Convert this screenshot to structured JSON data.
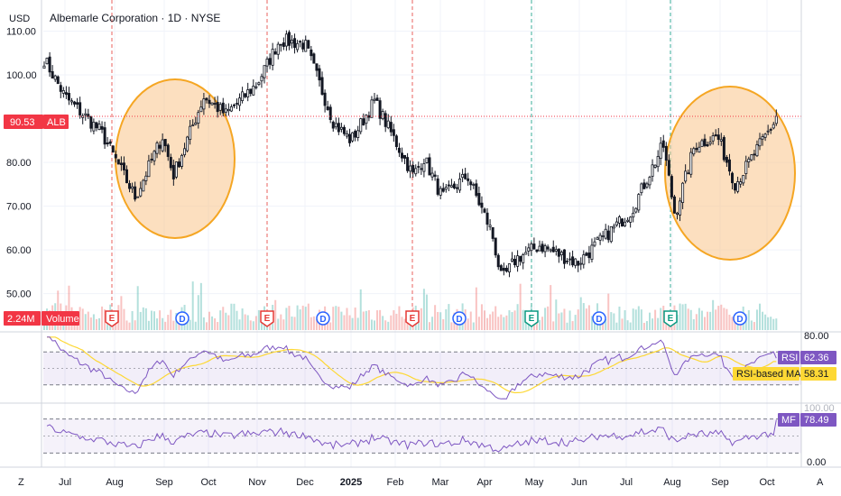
{
  "currency_label": "USD",
  "header": {
    "title": "Albemarle Corporation · 1D · NYSE"
  },
  "price_scale": {
    "ticks": [
      {
        "value": 110,
        "label": "110.00"
      },
      {
        "value": 100,
        "label": "100.00"
      },
      {
        "value": 90,
        "label": "90.00"
      },
      {
        "value": 80,
        "label": "80.00"
      },
      {
        "value": 70,
        "label": "70.00"
      },
      {
        "value": 60,
        "label": "60.00"
      },
      {
        "value": 50,
        "label": "50.00"
      }
    ],
    "last_price": {
      "value": 90.53,
      "label": "90.53",
      "symbol": "ALB"
    }
  },
  "volume_badge": {
    "value": "2.24M",
    "label": "Volume"
  },
  "time_axis": {
    "labels": [
      "Jul",
      "Aug",
      "Sep",
      "Oct",
      "Nov",
      "Dec",
      "2025",
      "Feb",
      "Mar",
      "Apr",
      "May",
      "Jun",
      "Jul",
      "Aug",
      "Sep",
      "Oct"
    ],
    "bold": [
      "2025"
    ],
    "left_button": "Z",
    "right_button": "A"
  },
  "event_markers": [
    {
      "text": "E",
      "kind": "earnings-red",
      "x_label": "Aug"
    },
    {
      "text": "D",
      "kind": "dividend",
      "x_label": "Sep"
    },
    {
      "text": "E",
      "kind": "earnings-red",
      "x_label": "Nov"
    },
    {
      "text": "D",
      "kind": "dividend",
      "x_label": "Dec"
    },
    {
      "text": "E",
      "kind": "earnings-red",
      "x_label": "Feb"
    },
    {
      "text": "D",
      "kind": "dividend",
      "x_label": "Mar"
    },
    {
      "text": "E",
      "kind": "earnings-green",
      "x_label": "May"
    },
    {
      "text": "D",
      "kind": "dividend",
      "x_label": "Jun"
    },
    {
      "text": "E",
      "kind": "earnings-green",
      "x_label": "Aug"
    },
    {
      "text": "D",
      "kind": "dividend",
      "x_label": "Sep"
    }
  ],
  "rsi_pane": {
    "scale_top": "80.00",
    "rsi": {
      "label": "RSI",
      "value": "62.36"
    },
    "ma": {
      "label": "RSI-based MA",
      "value": "58.31"
    }
  },
  "mf_pane": {
    "scale_top": "100.00",
    "scale_bottom": "0.00",
    "mf": {
      "label": "MF",
      "value": "78.49"
    }
  },
  "colors": {
    "up": "#26a69a",
    "down": "#ef5350",
    "candle": "#131722",
    "circle_fill": "#f9c48a",
    "circle_stroke": "#f5a623",
    "rsi_line": "#7e57c2",
    "rsi_ma": "#fdd835",
    "earnings_red": "#e53935",
    "earnings_green": "#089981",
    "dividend": "#2962ff",
    "price_badge": "#f23645"
  },
  "chart_data": {
    "type": "candlestick",
    "symbol": "ALB",
    "title": "Albemarle Corporation · 1D · NYSE",
    "currency": "USD",
    "ylim": [
      46,
      113
    ],
    "last_price": 90.53,
    "grid": true,
    "anchors": [
      {
        "month": "Jun",
        "close": 104
      },
      {
        "month": "Jul",
        "close": 95
      },
      {
        "month": "Aug",
        "close": 87
      },
      {
        "month": "Aug",
        "close": 72
      },
      {
        "month": "Sep",
        "close": 86
      },
      {
        "month": "Sep",
        "close": 77
      },
      {
        "month": "Oct",
        "close": 95
      },
      {
        "month": "Oct",
        "close": 91
      },
      {
        "month": "Nov",
        "close": 98
      },
      {
        "month": "Nov",
        "close": 108
      },
      {
        "month": "Dec",
        "close": 107
      },
      {
        "month": "Dec",
        "close": 89
      },
      {
        "month": "2025",
        "close": 85
      },
      {
        "month": "2025",
        "close": 94
      },
      {
        "month": "Feb",
        "close": 77
      },
      {
        "month": "Feb",
        "close": 81
      },
      {
        "month": "Mar",
        "close": 72
      },
      {
        "month": "Mar",
        "close": 77
      },
      {
        "month": "Apr",
        "close": 64
      },
      {
        "month": "Apr",
        "close": 53
      },
      {
        "month": "May",
        "close": 58
      },
      {
        "month": "May",
        "close": 61
      },
      {
        "month": "Jun",
        "close": 57
      },
      {
        "month": "Jun",
        "close": 61
      },
      {
        "month": "Jul",
        "close": 69
      },
      {
        "month": "Jul",
        "close": 84
      },
      {
        "month": "Aug",
        "close": 68
      },
      {
        "month": "Aug",
        "close": 84
      },
      {
        "month": "Sep",
        "close": 86
      },
      {
        "month": "Sep",
        "close": 75
      },
      {
        "month": "Oct",
        "close": 90.53
      }
    ],
    "highlight_circles": [
      {
        "from": "Aug",
        "to": "Oct",
        "price_range": [
          65,
          98
        ]
      },
      {
        "from": "Aug",
        "to": "Oct",
        "price_range": [
          60,
          98
        ]
      }
    ],
    "rsi": {
      "last": 62.36,
      "ma_last": 58.31,
      "bands": [
        30,
        70
      ]
    },
    "money_flow": {
      "last": 78.49,
      "bands": [
        20,
        80
      ]
    }
  }
}
